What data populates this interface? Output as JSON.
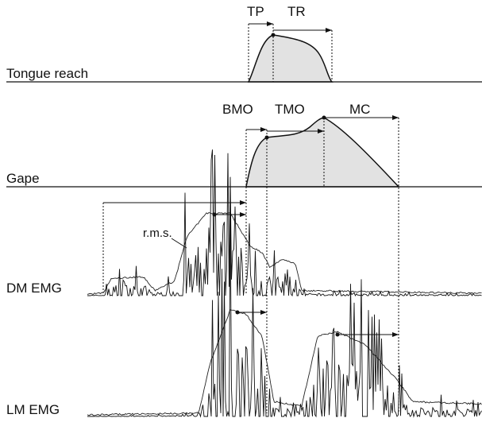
{
  "tongue": {
    "label": "Tongue reach",
    "phases": [
      "TP",
      "TR"
    ]
  },
  "gape": {
    "label": "Gape",
    "phases": [
      "BMO",
      "TMO",
      "MC"
    ]
  },
  "dm_emg": {
    "label": "DM EMG",
    "annotation": "r.m.s."
  },
  "lm_emg": {
    "label": "LM EMG"
  }
}
